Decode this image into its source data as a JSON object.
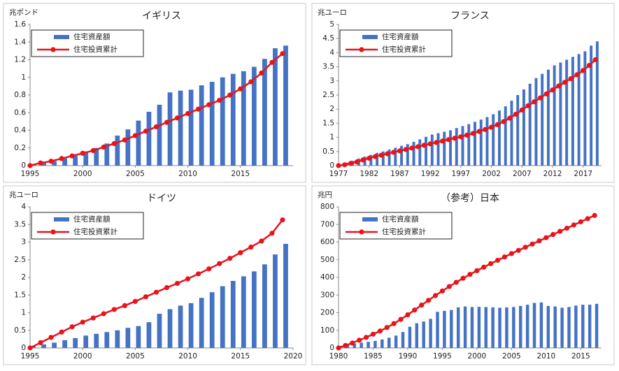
{
  "chart_data": [
    {
      "type": "combo",
      "title": "イギリス",
      "unit_label": "兆ポンド",
      "x": [
        1995,
        1996,
        1997,
        1998,
        1999,
        2000,
        2001,
        2002,
        2003,
        2004,
        2005,
        2006,
        2007,
        2008,
        2009,
        2010,
        2011,
        2012,
        2013,
        2014,
        2015,
        2016,
        2017,
        2018,
        2019
      ],
      "series": [
        {
          "name": "住宅資産額",
          "type": "bar",
          "color": "#4472c4",
          "values": [
            0.01,
            0.03,
            0.05,
            0.08,
            0.11,
            0.16,
            0.2,
            0.25,
            0.34,
            0.41,
            0.51,
            0.61,
            0.69,
            0.83,
            0.85,
            0.86,
            0.91,
            0.95,
            1.0,
            1.04,
            1.07,
            1.12,
            1.21,
            1.33,
            1.36
          ]
        },
        {
          "name": "住宅投資累計",
          "type": "line",
          "color": "#e8141a",
          "values": [
            0,
            0.03,
            0.05,
            0.08,
            0.11,
            0.14,
            0.17,
            0.21,
            0.25,
            0.29,
            0.34,
            0.39,
            0.44,
            0.49,
            0.54,
            0.59,
            0.64,
            0.69,
            0.74,
            0.8,
            0.87,
            0.95,
            1.05,
            1.17,
            1.27
          ]
        }
      ],
      "xlim": [
        1995,
        2020
      ],
      "xticks": [
        1995,
        2000,
        2005,
        2010,
        2015
      ],
      "ylim": [
        0,
        1.6
      ],
      "yticks": [
        0,
        0.2,
        0.4,
        0.6,
        0.8,
        1,
        1.2,
        1.4,
        1.6
      ]
    },
    {
      "type": "combo",
      "title": "フランス",
      "unit_label": "兆ユーロ",
      "x": [
        1977,
        1978,
        1979,
        1980,
        1981,
        1982,
        1983,
        1984,
        1985,
        1986,
        1987,
        1988,
        1989,
        1990,
        1991,
        1992,
        1993,
        1994,
        1995,
        1996,
        1997,
        1998,
        1999,
        2000,
        2001,
        2002,
        2003,
        2004,
        2005,
        2006,
        2007,
        2008,
        2009,
        2010,
        2011,
        2012,
        2013,
        2014,
        2015,
        2016,
        2017,
        2018,
        2019
      ],
      "series": [
        {
          "name": "住宅資産額",
          "type": "bar",
          "color": "#4472c4",
          "values": [
            0.05,
            0.1,
            0.17,
            0.25,
            0.32,
            0.38,
            0.45,
            0.5,
            0.57,
            0.63,
            0.7,
            0.76,
            0.84,
            0.93,
            1.02,
            1.1,
            1.15,
            1.2,
            1.25,
            1.33,
            1.4,
            1.47,
            1.55,
            1.63,
            1.72,
            1.82,
            1.95,
            2.1,
            2.3,
            2.5,
            2.7,
            2.9,
            3.1,
            3.25,
            3.4,
            3.55,
            3.65,
            3.75,
            3.85,
            3.95,
            4.05,
            4.25,
            4.4
          ]
        },
        {
          "name": "住宅投資累計",
          "type": "line",
          "color": "#e8141a",
          "values": [
            0,
            0.03,
            0.08,
            0.13,
            0.2,
            0.26,
            0.32,
            0.37,
            0.42,
            0.47,
            0.52,
            0.57,
            0.62,
            0.67,
            0.72,
            0.77,
            0.82,
            0.87,
            0.92,
            0.97,
            1.02,
            1.08,
            1.14,
            1.21,
            1.28,
            1.36,
            1.45,
            1.56,
            1.68,
            1.82,
            1.97,
            2.12,
            2.26,
            2.4,
            2.54,
            2.68,
            2.82,
            2.95,
            3.08,
            3.22,
            3.37,
            3.55,
            3.75
          ]
        }
      ],
      "xlim": [
        1977,
        2020
      ],
      "xticks": [
        1977,
        1982,
        1987,
        1992,
        1997,
        2002,
        2007,
        2012,
        2017
      ],
      "ylim": [
        0,
        5
      ],
      "yticks": [
        0,
        0.5,
        1,
        1.5,
        2,
        2.5,
        3,
        3.5,
        4,
        4.5,
        5
      ]
    },
    {
      "type": "combo",
      "title": "ドイツ",
      "unit_label": "兆ユーロ",
      "x": [
        1995,
        1996,
        1997,
        1998,
        1999,
        2000,
        2001,
        2002,
        2003,
        2004,
        2005,
        2006,
        2007,
        2008,
        2009,
        2010,
        2011,
        2012,
        2013,
        2014,
        2015,
        2016,
        2017,
        2018,
        2019
      ],
      "series": [
        {
          "name": "住宅資産額",
          "type": "bar",
          "color": "#4472c4",
          "values": [
            0.05,
            0.1,
            0.15,
            0.22,
            0.28,
            0.35,
            0.4,
            0.45,
            0.5,
            0.57,
            0.62,
            0.73,
            0.97,
            1.1,
            1.2,
            1.27,
            1.42,
            1.58,
            1.75,
            1.9,
            2.03,
            2.17,
            2.37,
            2.65,
            2.95
          ]
        },
        {
          "name": "住宅投資累計",
          "type": "line",
          "color": "#e8141a",
          "values": [
            0,
            0.15,
            0.3,
            0.45,
            0.6,
            0.73,
            0.85,
            0.97,
            1.09,
            1.2,
            1.32,
            1.45,
            1.58,
            1.71,
            1.83,
            1.96,
            2.1,
            2.24,
            2.39,
            2.54,
            2.7,
            2.86,
            3.03,
            3.25,
            3.63
          ]
        }
      ],
      "xlim": [
        1995,
        2020
      ],
      "xticks": [
        1995,
        2000,
        2005,
        2010,
        2015,
        2020
      ],
      "ylim": [
        0,
        4
      ],
      "yticks": [
        0,
        0.5,
        1,
        1.5,
        2,
        2.5,
        3,
        3.5,
        4
      ]
    },
    {
      "type": "combo",
      "title": "（参考）日本",
      "unit_label": "兆円",
      "x": [
        1980,
        1981,
        1982,
        1983,
        1984,
        1985,
        1986,
        1987,
        1988,
        1989,
        1990,
        1991,
        1992,
        1993,
        1994,
        1995,
        1996,
        1997,
        1998,
        1999,
        2000,
        2001,
        2002,
        2003,
        2004,
        2005,
        2006,
        2007,
        2008,
        2009,
        2010,
        2011,
        2012,
        2013,
        2014,
        2015,
        2016,
        2017
      ],
      "series": [
        {
          "name": "住宅資産額",
          "type": "bar",
          "color": "#4472c4",
          "values": [
            12,
            20,
            25,
            30,
            35,
            40,
            48,
            58,
            70,
            90,
            120,
            140,
            150,
            165,
            205,
            210,
            215,
            230,
            235,
            232,
            233,
            232,
            230,
            228,
            230,
            232,
            238,
            245,
            255,
            258,
            238,
            235,
            228,
            232,
            240,
            245,
            245,
            250
          ]
        },
        {
          "name": "住宅投資累計",
          "type": "line",
          "color": "#e8141a",
          "values": [
            0,
            14,
            28,
            44,
            60,
            78,
            96,
            116,
            138,
            162,
            188,
            215,
            243,
            270,
            297,
            323,
            348,
            372,
            395,
            417,
            438,
            458,
            478,
            497,
            516,
            535,
            553,
            571,
            589,
            607,
            625,
            643,
            661,
            679,
            697,
            715,
            733,
            751
          ]
        }
      ],
      "xlim": [
        1980,
        2018
      ],
      "xticks": [
        1980,
        1985,
        1990,
        1995,
        2000,
        2005,
        2010,
        2015
      ],
      "ylim": [
        0,
        800
      ],
      "yticks": [
        0,
        100,
        200,
        300,
        400,
        500,
        600,
        700,
        800
      ]
    }
  ]
}
